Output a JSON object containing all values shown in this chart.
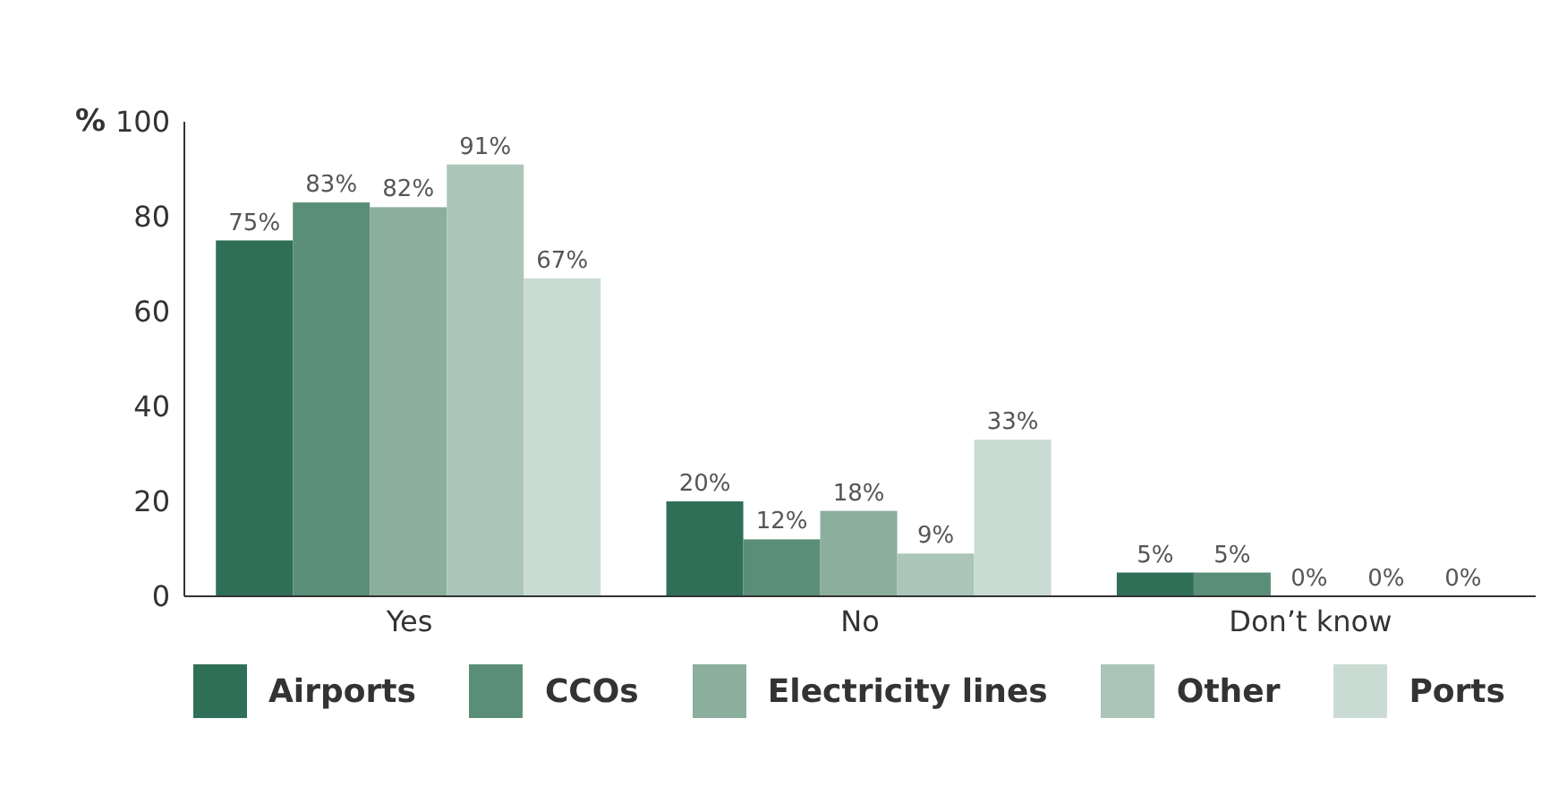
{
  "chart_data": {
    "type": "bar",
    "ylabel": "%",
    "categories": [
      "Yes",
      "No",
      "Don’t know"
    ],
    "series": [
      {
        "name": "Airports",
        "color": "#2f6f58",
        "values": [
          75,
          20,
          5
        ]
      },
      {
        "name": "CCOs",
        "color": "#5b8e79",
        "values": [
          83,
          12,
          5
        ]
      },
      {
        "name": "Electricity lines",
        "color": "#8bae9d",
        "values": [
          82,
          18,
          0
        ]
      },
      {
        "name": "Other",
        "color": "#abc6b9",
        "values": [
          91,
          9,
          0
        ]
      },
      {
        "name": "Ports",
        "color": "#cadbd3",
        "values": [
          67,
          33,
          0
        ]
      }
    ],
    "value_labels": [
      [
        "75%",
        "20%",
        "5%"
      ],
      [
        "83%",
        "12%",
        "5%"
      ],
      [
        "82%",
        "18%",
        "0%"
      ],
      [
        "91%",
        "9%",
        "0%"
      ],
      [
        "67%",
        "33%",
        "0%"
      ]
    ],
    "ylim": [
      0,
      100
    ],
    "yticks": [
      0,
      20,
      40,
      60,
      80,
      100
    ],
    "grid": false,
    "legend": "bottom"
  }
}
